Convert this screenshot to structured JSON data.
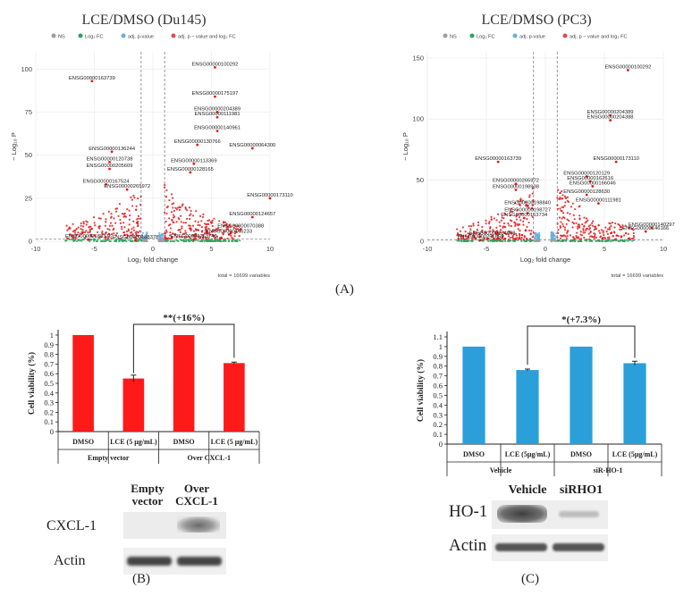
{
  "panel_labels": {
    "A": "(A)",
    "B": "(B)",
    "C": "(C)"
  },
  "legend": {
    "items": [
      {
        "label": "NS",
        "color": "#9e9e9e"
      },
      {
        "label": "Log₂ FC",
        "color": "#2ca25f"
      },
      {
        "label": "adj. p-value",
        "color": "#6baed6"
      },
      {
        "label": "adj. p − value and log₂ FC",
        "color": "#e34a4a"
      }
    ]
  },
  "colors": {
    "sig": "#e31a1c",
    "ns": "#9e9e9e",
    "fc": "#2ca25f",
    "bar_red": "#ff1a1a",
    "bar_blue": "#2b9fd9"
  },
  "chart_data": [
    {
      "type": "scatter",
      "title": "LCE/DMSO (Du145)",
      "xlabel": "Log₂ fold change",
      "ylabel": "− Log₁₀ P",
      "xlim": [
        -10,
        10
      ],
      "ylim": [
        0,
        110
      ],
      "xticks": [
        -10,
        -5,
        0,
        5,
        10
      ],
      "yticks": [
        0,
        25,
        50,
        75,
        100
      ],
      "caption": "total = 16699 variables",
      "thresholds": {
        "fc": [
          -1,
          1
        ],
        "p": 1.3
      },
      "labeled_points": [
        {
          "x": 5.3,
          "y": 101,
          "label": "ENSG00000100292"
        },
        {
          "x": -5.2,
          "y": 93,
          "label": "ENSG00000163739"
        },
        {
          "x": 5.3,
          "y": 84,
          "label": "ENSG00000175197"
        },
        {
          "x": 5.5,
          "y": 75,
          "label": "ENSG00000204389"
        },
        {
          "x": 5.5,
          "y": 72,
          "label": "ENSG00000111981"
        },
        {
          "x": 5.5,
          "y": 64,
          "label": "ENSG00000140961"
        },
        {
          "x": 3.8,
          "y": 56,
          "label": "ENSG00000130766"
        },
        {
          "x": 8.5,
          "y": 54,
          "label": "ENSG00000064300"
        },
        {
          "x": -3.5,
          "y": 52,
          "label": "ENSG00000136244"
        },
        {
          "x": -3.7,
          "y": 46,
          "label": "ENSG00000120738"
        },
        {
          "x": -3.7,
          "y": 42,
          "label": "ENSG00000205609"
        },
        {
          "x": 3.5,
          "y": 45,
          "label": "ENSG00000113369"
        },
        {
          "x": 3.2,
          "y": 40,
          "label": "ENSG00000128165"
        },
        {
          "x": -4.0,
          "y": 33,
          "label": "ENSG00000167524"
        },
        {
          "x": -2.2,
          "y": 30,
          "label": "ENSG00000265972"
        },
        {
          "x": 10.0,
          "y": 25,
          "label": "ENSG00000173110"
        },
        {
          "x": 8.5,
          "y": 14,
          "label": "ENSG00000124657"
        },
        {
          "x": 7.5,
          "y": 7,
          "label": "ENSG00000070388"
        },
        {
          "x": 6.5,
          "y": 4,
          "label": "ENSG00000146233"
        },
        {
          "x": 3.5,
          "y": 1,
          "label": "ENSG00000263740"
        },
        {
          "x": -5.5,
          "y": 1,
          "label": "ENSG00000188376"
        },
        {
          "x": -1.5,
          "y": 0.5,
          "label": "ENSG00000188378"
        }
      ]
    },
    {
      "type": "scatter",
      "title": "LCE/DMSO (PC3)",
      "xlabel": "Log₂ fold change",
      "ylabel": "− Log₁₀ P",
      "xlim": [
        -10,
        10
      ],
      "ylim": [
        0,
        155
      ],
      "xticks": [
        -10,
        -5,
        0,
        5,
        10
      ],
      "yticks": [
        0,
        50,
        100,
        150
      ],
      "caption": "total = 16699 variables",
      "thresholds": {
        "fc": [
          -1,
          1
        ],
        "p": 1.3
      },
      "labeled_points": [
        {
          "x": 7.0,
          "y": 140,
          "label": "ENSG00000100292"
        },
        {
          "x": 5.5,
          "y": 103,
          "label": "ENSG00000204389"
        },
        {
          "x": 5.5,
          "y": 99,
          "label": "ENSG00000204388"
        },
        {
          "x": -4.0,
          "y": 65,
          "label": "ENSG00000163739"
        },
        {
          "x": 6.0,
          "y": 65,
          "label": "ENSG00000173110"
        },
        {
          "x": 3.5,
          "y": 53,
          "label": "ENSG00000120129"
        },
        {
          "x": 3.8,
          "y": 49,
          "label": "ENSG00000162616"
        },
        {
          "x": 4.0,
          "y": 45,
          "label": "ENSG00000166046"
        },
        {
          "x": -2.5,
          "y": 47,
          "label": "ENSG00000265972"
        },
        {
          "x": -2.5,
          "y": 42,
          "label": "ENSG00000198938"
        },
        {
          "x": 3.5,
          "y": 38,
          "label": "ENSG00000128630"
        },
        {
          "x": -1.5,
          "y": 29,
          "label": "ENSG00000198840"
        },
        {
          "x": -1.5,
          "y": 23,
          "label": "ENSG00000198727"
        },
        {
          "x": 4.5,
          "y": 31,
          "label": "ENSG00000111981"
        },
        {
          "x": -1.8,
          "y": 19,
          "label": "ENSG00000163734"
        },
        {
          "x": 9.0,
          "y": 11,
          "label": "ENSG00000140297"
        },
        {
          "x": 8.5,
          "y": 8,
          "label": "ENSG00000146166"
        },
        {
          "x": -4.5,
          "y": 4,
          "label": "ENSG00000234608"
        },
        {
          "x": -5.5,
          "y": 1,
          "label": "ENSG00000251858"
        }
      ]
    },
    {
      "type": "bar",
      "ylabel": "Cell viability (%)",
      "ylim": [
        0,
        1
      ],
      "yticks": [
        "0",
        "0.1",
        "0.2",
        "0.3",
        "0.4",
        "0.5",
        "0.6",
        "0.7",
        "0.8",
        "0.9",
        "1"
      ],
      "categories": [
        "DMSO",
        "LCE (5 μg/mL)",
        "DMSO",
        "LCE (5 μg/mL)"
      ],
      "groups": [
        "Empty vector",
        "Over CXCL-1"
      ],
      "values": [
        1.0,
        0.55,
        1.0,
        0.71
      ],
      "errors": [
        0,
        0.035,
        0,
        0.01
      ],
      "annotation": "**(+16%)"
    },
    {
      "type": "bar",
      "ylabel": "Cell viability (%)",
      "ylim": [
        0,
        1.1
      ],
      "yticks": [
        "0",
        "0.1",
        "0.2",
        "0.3",
        "0.4",
        "0.5",
        "0.6",
        "0.7",
        "0.8",
        "0.9",
        "1",
        "1.1"
      ],
      "categories": [
        "DMSO",
        "LCE (5μg/mL)",
        "DMSO",
        "LCE (5μg/mL)"
      ],
      "groups": [
        "Vehicle",
        "siR-HO-1"
      ],
      "values": [
        1.0,
        0.76,
        1.0,
        0.83
      ],
      "errors": [
        0,
        0.01,
        0,
        0.02
      ],
      "annotation": "*(+7.3%)"
    }
  ],
  "western_b": {
    "lanes": [
      "Empty\nvector",
      "Over\nCXCL-1"
    ],
    "rows": [
      "CXCL-1",
      "Actin"
    ]
  },
  "western_c": {
    "lanes": [
      "Vehicle",
      "siRHO1"
    ],
    "rows": [
      "HO-1",
      "Actin"
    ]
  }
}
